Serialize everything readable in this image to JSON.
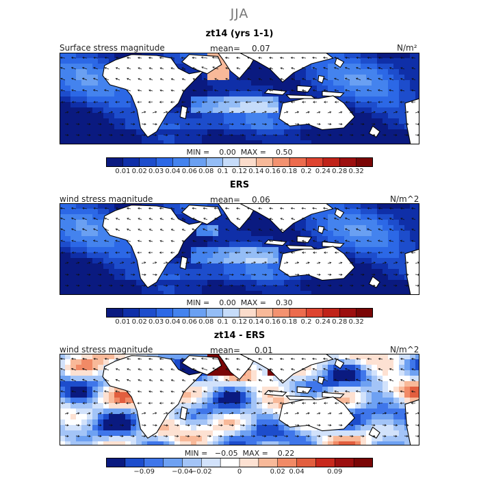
{
  "figure_title": "JJA",
  "panels": [
    {
      "title": "zt14 (yrs 1-1)",
      "field_label": "Surface stress magnitude",
      "mean_label": "mean=",
      "mean_value": "0.07",
      "units": "N/m²",
      "stats": "MIN =    0.00  MAX =    0.50",
      "colorbar_ticks": [
        "0.01",
        "0.02",
        "0.03",
        "0.04",
        "0.06",
        "0.08",
        "0.1",
        "0.12",
        "0.14",
        "0.16",
        "0.18",
        "0.2",
        "0.24",
        "0.28",
        "0.32"
      ]
    },
    {
      "title": "ERS",
      "field_label": "wind stress magnitude",
      "mean_label": "mean=",
      "mean_value": "0.06",
      "units": "N/m^2",
      "stats": "MIN =    0.00  MAX =    0.30",
      "colorbar_ticks": [
        "0.01",
        "0.02",
        "0.03",
        "0.04",
        "0.06",
        "0.08",
        "0.1",
        "0.12",
        "0.14",
        "0.16",
        "0.18",
        "0.2",
        "0.24",
        "0.28",
        "0.32"
      ]
    },
    {
      "title": "zt14 - ERS",
      "field_label": "wind stress magnitude",
      "mean_label": "mean=",
      "mean_value": "0.01",
      "units": "N/m^2",
      "stats": "MIN =   −0.05  MAX =    0.22",
      "colorbar_ticks": [
        "−0.09",
        "−0.04",
        "−0.02",
        "0",
        "0.02",
        "0.04",
        "0.09"
      ]
    }
  ],
  "chart_data": [
    {
      "type": "heatmap",
      "title": "zt14 (yrs 1-1)",
      "subtitle": "Surface stress magnitude",
      "units": "N/m²",
      "mean": 0.07,
      "min": 0.0,
      "max": 0.5,
      "color_levels": [
        0.01,
        0.02,
        0.03,
        0.04,
        0.06,
        0.08,
        0.1,
        0.12,
        0.14,
        0.16,
        0.18,
        0.2,
        0.24,
        0.28,
        0.32
      ]
    },
    {
      "type": "heatmap",
      "title": "ERS",
      "subtitle": "wind stress magnitude",
      "units": "N/m^2",
      "mean": 0.06,
      "min": 0.0,
      "max": 0.3,
      "color_levels": [
        0.01,
        0.02,
        0.03,
        0.04,
        0.06,
        0.08,
        0.1,
        0.12,
        0.14,
        0.16,
        0.18,
        0.2,
        0.24,
        0.28,
        0.32
      ]
    },
    {
      "type": "heatmap",
      "title": "zt14 - ERS",
      "subtitle": "wind stress magnitude",
      "units": "N/m^2",
      "mean": 0.01,
      "min": -0.05,
      "max": 0.22,
      "color_levels": [
        -0.09,
        -0.04,
        -0.02,
        0,
        0.02,
        0.04,
        0.09
      ]
    }
  ],
  "colors": {
    "seq_colorbar": [
      "#0a1a80",
      "#0f2fa8",
      "#1d4dcc",
      "#2c68e6",
      "#4483ee",
      "#6aa0f2",
      "#94bdf6",
      "#c6dcfa",
      "#fbdccb",
      "#f8b999",
      "#f39270",
      "#ec6b4d",
      "#de4430",
      "#c02319",
      "#9c0f0f",
      "#7a0606"
    ],
    "div_colorbar": [
      "#0a1a80",
      "#1d4dcc",
      "#3f76ea",
      "#6ea1f2",
      "#a3c4f7",
      "#d2e2fb",
      "#ffffff",
      "#fde1d2",
      "#f8b999",
      "#f18a66",
      "#e25e3e",
      "#c8281c",
      "#9c0f0f",
      "#7a0606"
    ],
    "land": "#ffffff"
  }
}
